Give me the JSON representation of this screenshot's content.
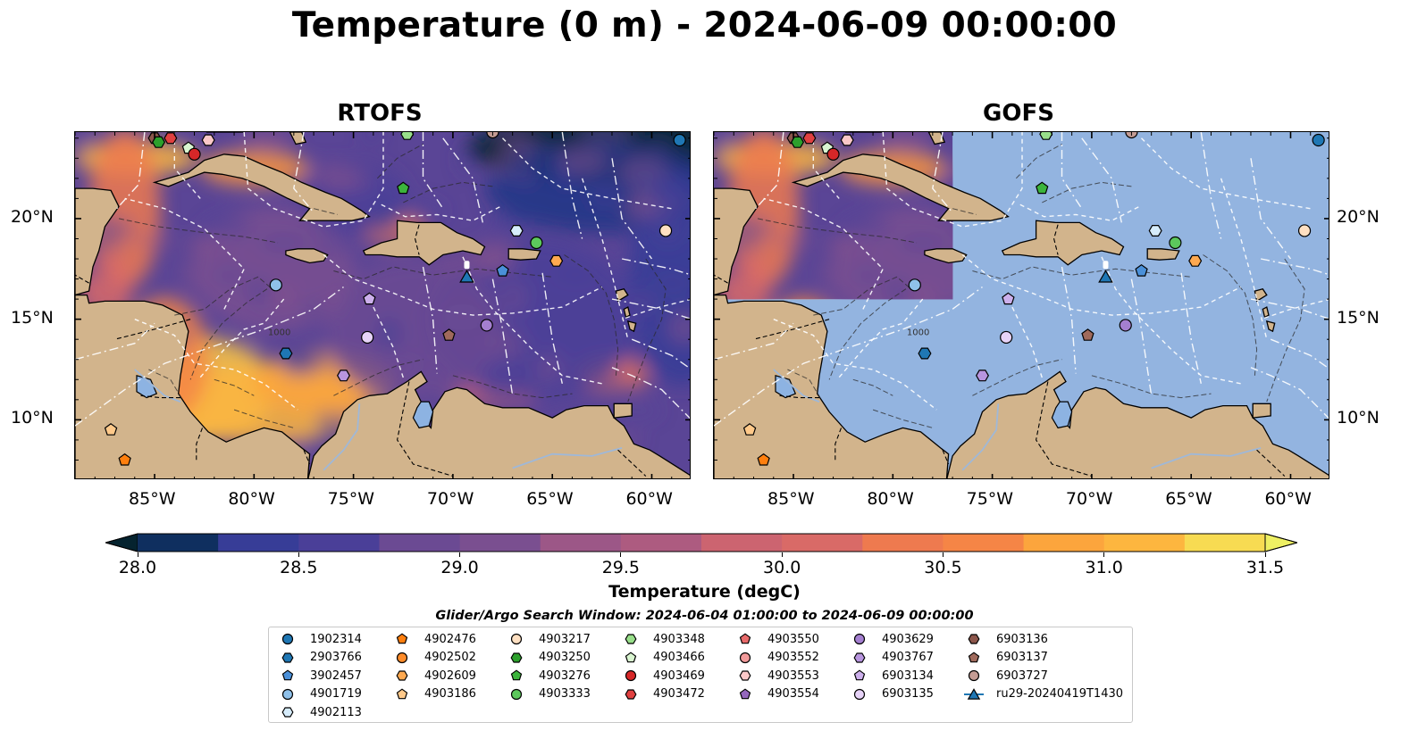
{
  "title": "Temperature (0 m) - 2024-06-09 00:00:00",
  "panels": [
    {
      "name": "RTOFS"
    },
    {
      "name": "GOFS"
    }
  ],
  "axes": {
    "lon_ticks": [
      "85°W",
      "80°W",
      "75°W",
      "70°W",
      "65°W",
      "60°W"
    ],
    "lat_ticks": [
      "20°N",
      "15°N",
      "10°N"
    ],
    "lon_values": [
      -85,
      -80,
      -75,
      -70,
      -65,
      -60
    ],
    "lat_values": [
      20,
      15,
      10
    ],
    "lon_range": [
      -89,
      -58
    ],
    "lat_range": [
      7,
      24.3
    ]
  },
  "colorbar": {
    "label": "Temperature (degC)",
    "min": 28.0,
    "max": 31.5,
    "step": 0.25,
    "ticks": [
      "28.0",
      "28.5",
      "29.0",
      "29.5",
      "30.0",
      "30.5",
      "31.0",
      "31.5"
    ],
    "extend": "both"
  },
  "contours": {
    "isobath_label": "1000"
  },
  "search_window": "Glider/Argo Search Window: 2024-06-04 01:00:00 to 2024-06-09 00:00:00",
  "legend": [
    {
      "id": "1902314",
      "color": "#1f77b4",
      "shape": "circle"
    },
    {
      "id": "2903766",
      "color": "#1f77b4",
      "shape": "hexagon"
    },
    {
      "id": "3902457",
      "color": "#4a90d9",
      "shape": "pentagon"
    },
    {
      "id": "4901719",
      "color": "#8fc1ea",
      "shape": "circle"
    },
    {
      "id": "4902113",
      "color": "#d6ecfb",
      "shape": "hexagon"
    },
    {
      "id": "4902476",
      "color": "#ff7f0e",
      "shape": "pentagon"
    },
    {
      "id": "4902502",
      "color": "#ff8c2a",
      "shape": "circle"
    },
    {
      "id": "4902609",
      "color": "#ffa950",
      "shape": "hexagon"
    },
    {
      "id": "4903186",
      "color": "#ffc98a",
      "shape": "pentagon"
    },
    {
      "id": "4903217",
      "color": "#ffe0c2",
      "shape": "circle"
    },
    {
      "id": "4903250",
      "color": "#2ca02c",
      "shape": "hexagon"
    },
    {
      "id": "4903276",
      "color": "#3cb43c",
      "shape": "pentagon"
    },
    {
      "id": "4903333",
      "color": "#5cc85c",
      "shape": "circle"
    },
    {
      "id": "4903348",
      "color": "#98df8a",
      "shape": "hexagon"
    },
    {
      "id": "4903466",
      "color": "#d9f5d0",
      "shape": "pentagon"
    },
    {
      "id": "4903469",
      "color": "#d62728",
      "shape": "circle"
    },
    {
      "id": "4903472",
      "color": "#e04040",
      "shape": "hexagon"
    },
    {
      "id": "4903550",
      "color": "#e86a6a",
      "shape": "pentagon"
    },
    {
      "id": "4903552",
      "color": "#f29a9a",
      "shape": "circle"
    },
    {
      "id": "4903553",
      "color": "#fbc8c8",
      "shape": "hexagon"
    },
    {
      "id": "4903554",
      "color": "#9467bd",
      "shape": "pentagon"
    },
    {
      "id": "4903629",
      "color": "#a47fd0",
      "shape": "circle"
    },
    {
      "id": "4903767",
      "color": "#b895df",
      "shape": "hexagon"
    },
    {
      "id": "6903134",
      "color": "#cdb0ec",
      "shape": "pentagon"
    },
    {
      "id": "6903135",
      "color": "#e7d3f8",
      "shape": "circle"
    },
    {
      "id": "6903136",
      "color": "#8c564b",
      "shape": "hexagon"
    },
    {
      "id": "6903137",
      "color": "#a06a5c",
      "shape": "pentagon"
    },
    {
      "id": "6903727",
      "color": "#c49c94",
      "shape": "circle"
    },
    {
      "id": "ru29-20240419T1430",
      "color": "#1f77b4",
      "shape": "triangle"
    }
  ],
  "markers": [
    {
      "id": "6903136",
      "lon": -85.0,
      "lat": 24.0
    },
    {
      "id": "4903250",
      "lon": -84.8,
      "lat": 23.8
    },
    {
      "id": "4903472",
      "lon": -84.2,
      "lat": 24.0
    },
    {
      "id": "4903466",
      "lon": -83.3,
      "lat": 23.5
    },
    {
      "id": "4903469",
      "lon": -83.0,
      "lat": 23.2
    },
    {
      "id": "4903553",
      "lon": -82.3,
      "lat": 23.9
    },
    {
      "id": "4903348",
      "lon": -72.3,
      "lat": 24.2
    },
    {
      "id": "6903727",
      "lon": -68.0,
      "lat": 24.3
    },
    {
      "id": "1902314",
      "lon": -58.6,
      "lat": 23.9
    },
    {
      "id": "4903276",
      "lon": -72.5,
      "lat": 21.5
    },
    {
      "id": "4902113",
      "lon": -66.8,
      "lat": 19.4
    },
    {
      "id": "4903333",
      "lon": -65.8,
      "lat": 18.8
    },
    {
      "id": "4903217",
      "lon": -59.3,
      "lat": 19.4
    },
    {
      "id": "4902609",
      "lon": -64.8,
      "lat": 17.9
    },
    {
      "id": "3902457",
      "lon": -67.5,
      "lat": 17.4
    },
    {
      "id": "4901719",
      "lon": -78.9,
      "lat": 16.7
    },
    {
      "id": "6903134",
      "lon": -74.2,
      "lat": 16.0
    },
    {
      "id": "6903137",
      "lon": -70.2,
      "lat": 14.2
    },
    {
      "id": "4903629",
      "lon": -68.3,
      "lat": 14.7
    },
    {
      "id": "6903135",
      "lon": -74.3,
      "lat": 14.1
    },
    {
      "id": "2903766",
      "lon": -78.4,
      "lat": 13.3
    },
    {
      "id": "4903767",
      "lon": -75.5,
      "lat": 12.2
    },
    {
      "id": "4903186",
      "lon": -87.2,
      "lat": 9.5
    },
    {
      "id": "4902476",
      "lon": -86.5,
      "lat": 8.0
    },
    {
      "id": "ru29-20240419T1430",
      "lon": -69.3,
      "lat": 17.1
    }
  ],
  "gofs_coverage": {
    "lon_max": -77.0,
    "lat_min": 16.0
  },
  "colors": {
    "land": "#d2b48c",
    "ocean_nodata": "#93b4e0",
    "lakes": "#8db3e2",
    "rivers": "#9fb8d8",
    "eez": "#ffffff"
  },
  "colormap": [
    "#05232f",
    "#0f2f5f",
    "#213686",
    "#373d97",
    "#4a3f98",
    "#5a4596",
    "#6b4a93",
    "#7a4f90",
    "#8c548c",
    "#9c5787",
    "#ad5b80",
    "#bd5f79",
    "#cc6470",
    "#d96a67",
    "#e5715c",
    "#ee7a4f",
    "#f58546",
    "#f99540",
    "#fca53d",
    "#fdb63f",
    "#fbc847",
    "#f7db52",
    "#eef063"
  ]
}
